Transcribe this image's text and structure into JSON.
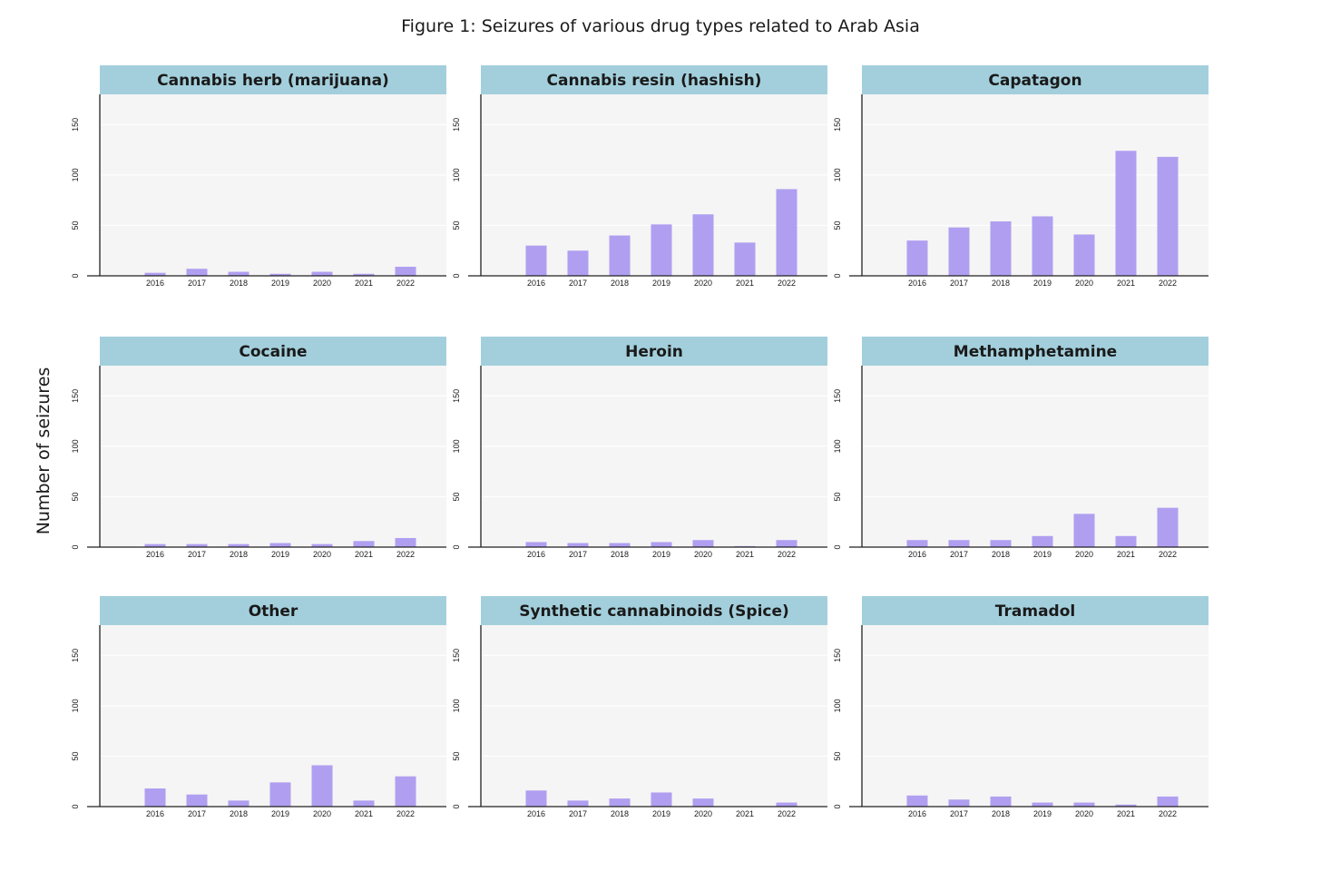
{
  "figure": {
    "title": "Figure 1: Seizures of various drug types related to Arab Asia",
    "ylabel": "Number of seizures"
  },
  "colors": {
    "bar": "#b09ff0",
    "header": "#a3cfdc",
    "plot_bg": "#f5f5f5",
    "grid": "#ffffff",
    "axis": "#222222"
  },
  "chart_data": [
    {
      "type": "bar",
      "title": "Cannabis herb (marijuana)",
      "categories": [
        "2016",
        "2017",
        "2018",
        "2019",
        "2020",
        "2021",
        "2022"
      ],
      "values": [
        3,
        7,
        4,
        2,
        4,
        2,
        9
      ],
      "ylim": [
        0,
        180
      ],
      "yticks": [
        0,
        50,
        100,
        150
      ],
      "grid": true
    },
    {
      "type": "bar",
      "title": "Cannabis resin (hashish)",
      "categories": [
        "2016",
        "2017",
        "2018",
        "2019",
        "2020",
        "2021",
        "2022"
      ],
      "values": [
        30,
        25,
        40,
        51,
        61,
        33,
        86
      ],
      "ylim": [
        0,
        180
      ],
      "yticks": [
        0,
        50,
        100,
        150
      ],
      "grid": true
    },
    {
      "type": "bar",
      "title": "Capatagon",
      "categories": [
        "2016",
        "2017",
        "2018",
        "2019",
        "2020",
        "2021",
        "2022"
      ],
      "values": [
        35,
        48,
        54,
        59,
        41,
        124,
        118
      ],
      "ylim": [
        0,
        180
      ],
      "yticks": [
        0,
        50,
        100,
        150
      ],
      "grid": true
    },
    {
      "type": "bar",
      "title": "Cocaine",
      "categories": [
        "2016",
        "2017",
        "2018",
        "2019",
        "2020",
        "2021",
        "2022"
      ],
      "values": [
        3,
        3,
        3,
        4,
        3,
        6,
        9
      ],
      "ylim": [
        0,
        180
      ],
      "yticks": [
        0,
        50,
        100,
        150
      ],
      "grid": true
    },
    {
      "type": "bar",
      "title": "Heroin",
      "categories": [
        "2016",
        "2017",
        "2018",
        "2019",
        "2020",
        "2021",
        "2022"
      ],
      "values": [
        5,
        4,
        4,
        5,
        7,
        1,
        7
      ],
      "ylim": [
        0,
        180
      ],
      "yticks": [
        0,
        50,
        100,
        150
      ],
      "grid": true
    },
    {
      "type": "bar",
      "title": "Methamphetamine",
      "categories": [
        "2016",
        "2017",
        "2018",
        "2019",
        "2020",
        "2021",
        "2022"
      ],
      "values": [
        7,
        7,
        7,
        11,
        33,
        11,
        39
      ],
      "ylim": [
        0,
        180
      ],
      "yticks": [
        0,
        50,
        100,
        150
      ],
      "grid": true
    },
    {
      "type": "bar",
      "title": "Other",
      "categories": [
        "2016",
        "2017",
        "2018",
        "2019",
        "2020",
        "2021",
        "2022"
      ],
      "values": [
        18,
        12,
        6,
        24,
        41,
        6,
        30
      ],
      "ylim": [
        0,
        180
      ],
      "yticks": [
        0,
        50,
        100,
        150
      ],
      "grid": true
    },
    {
      "type": "bar",
      "title": "Synthetic cannabinoids (Spice)",
      "categories": [
        "2016",
        "2017",
        "2018",
        "2019",
        "2020",
        "2021",
        "2022"
      ],
      "values": [
        16,
        6,
        8,
        14,
        8,
        0,
        4
      ],
      "ylim": [
        0,
        180
      ],
      "yticks": [
        0,
        50,
        100,
        150
      ],
      "grid": true
    },
    {
      "type": "bar",
      "title": "Tramadol",
      "categories": [
        "2016",
        "2017",
        "2018",
        "2019",
        "2020",
        "2021",
        "2022"
      ],
      "values": [
        11,
        7,
        10,
        4,
        4,
        2,
        10
      ],
      "ylim": [
        0,
        180
      ],
      "yticks": [
        0,
        50,
        100,
        150
      ],
      "grid": true
    }
  ]
}
